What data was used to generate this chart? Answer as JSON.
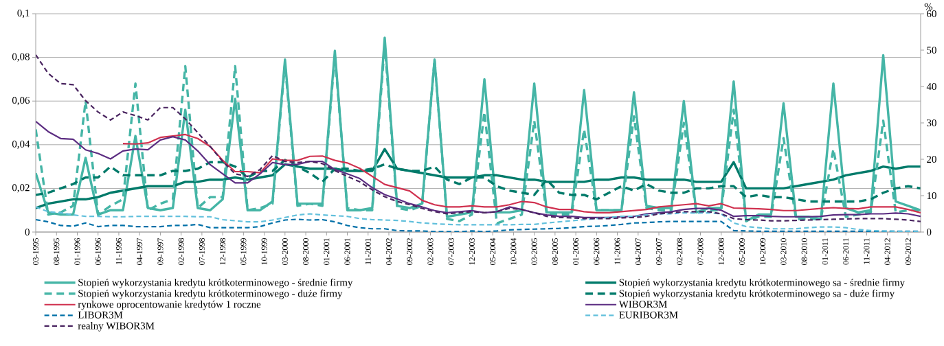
{
  "chart_data": {
    "type": "line",
    "x": [
      "1995-03",
      "1995-06",
      "1995-09",
      "1995-12",
      "1996-03",
      "1996-06",
      "1996-09",
      "1996-12",
      "1997-03",
      "1997-06",
      "1997-09",
      "1997-12",
      "1998-03",
      "1998-06",
      "1998-09",
      "1998-12",
      "1999-03",
      "1999-06",
      "1999-09",
      "1999-12",
      "2000-03",
      "2000-06",
      "2000-09",
      "2000-12",
      "2001-03",
      "2001-06",
      "2001-09",
      "2001-12",
      "2002-03",
      "2002-06",
      "2002-09",
      "2002-12",
      "2003-03",
      "2003-06",
      "2003-09",
      "2003-12",
      "2004-03",
      "2004-06",
      "2004-09",
      "2004-12",
      "2005-03",
      "2005-06",
      "2005-09",
      "2005-12",
      "2006-03",
      "2006-06",
      "2006-09",
      "2006-12",
      "2007-03",
      "2007-06",
      "2007-09",
      "2007-12",
      "2008-03",
      "2008-06",
      "2008-09",
      "2008-12",
      "2009-03",
      "2009-06",
      "2009-09",
      "2009-12",
      "2010-03",
      "2010-06",
      "2010-09",
      "2010-12",
      "2011-03",
      "2011-06",
      "2011-09",
      "2011-12",
      "2012-03",
      "2012-06",
      "2012-09",
      "2012-12"
    ],
    "xlim": [
      "1995-03",
      "2012-12"
    ],
    "xticks": [
      {
        "value": "1995-03",
        "label": "03-1995"
      },
      {
        "value": "1995-08",
        "label": "08-1995"
      },
      {
        "value": "1996-01",
        "label": "01-1996"
      },
      {
        "value": "1996-06",
        "label": "06-1996"
      },
      {
        "value": "1996-11",
        "label": "11-1996"
      },
      {
        "value": "1997-04",
        "label": "04-1997"
      },
      {
        "value": "1997-09",
        "label": "09-1997"
      },
      {
        "value": "1998-02",
        "label": "02-1998"
      },
      {
        "value": "1998-07",
        "label": "07-1998"
      },
      {
        "value": "1998-12",
        "label": "12-1998"
      },
      {
        "value": "1999-05",
        "label": "05-1999"
      },
      {
        "value": "1999-10",
        "label": "10-1999"
      },
      {
        "value": "2000-03",
        "label": "03-2000"
      },
      {
        "value": "2000-08",
        "label": "08-2000"
      },
      {
        "value": "2001-01",
        "label": "01-2001"
      },
      {
        "value": "2001-06",
        "label": "06-2001"
      },
      {
        "value": "2001-11",
        "label": "11-2001"
      },
      {
        "value": "2002-04",
        "label": "04-2002"
      },
      {
        "value": "2002-09",
        "label": "09-2002"
      },
      {
        "value": "2003-02",
        "label": "02-2003"
      },
      {
        "value": "2003-07",
        "label": "07-2003"
      },
      {
        "value": "2003-12",
        "label": "12-2003"
      },
      {
        "value": "2004-05",
        "label": "05-2004"
      },
      {
        "value": "2004-10",
        "label": "10-2004"
      },
      {
        "value": "2005-03",
        "label": "03-2005"
      },
      {
        "value": "2005-08",
        "label": "08-2005"
      },
      {
        "value": "2006-01",
        "label": "01-2006"
      },
      {
        "value": "2006-06",
        "label": "06-2006"
      },
      {
        "value": "2006-11",
        "label": "11-2006"
      },
      {
        "value": "2007-04",
        "label": "04-2007"
      },
      {
        "value": "2007-09",
        "label": "09-2007"
      },
      {
        "value": "2008-02",
        "label": "02-2008"
      },
      {
        "value": "2008-07",
        "label": "07-2008"
      },
      {
        "value": "2008-12",
        "label": "12-2008"
      },
      {
        "value": "2009-05",
        "label": "05-2009"
      },
      {
        "value": "2009-10",
        "label": "10-2009"
      },
      {
        "value": "2010-03",
        "label": "03-2010"
      },
      {
        "value": "2010-08",
        "label": "08-2010"
      },
      {
        "value": "2011-01",
        "label": "01-2011"
      },
      {
        "value": "2011-06",
        "label": "06-2011"
      },
      {
        "value": "2011-11",
        "label": "11-2011"
      },
      {
        "value": "2012-04",
        "label": "04-2012"
      },
      {
        "value": "2012-09",
        "label": "09-2012"
      }
    ],
    "ylim": [
      0,
      0.1
    ],
    "yticks": [
      0,
      {
        "value": 0.02,
        "label": "0,02"
      },
      {
        "value": 0.04,
        "label": "0,04"
      },
      {
        "value": 0.06,
        "label": "0,06"
      },
      {
        "value": 0.08,
        "label": "0,08"
      },
      {
        "value": 0.1,
        "label": "0,1"
      }
    ],
    "y2lim": [
      0,
      60
    ],
    "y2ticks": [
      0,
      10,
      20,
      30,
      40,
      50,
      60
    ],
    "y2label": "%",
    "grid": "y",
    "legend": "bottom",
    "series": [
      {
        "name": "Stopień wykorzystania kredytu krótkoterminowego - średnie firmy",
        "color": "#45b5a6",
        "line_style": "solid",
        "axis": "y",
        "values": [
          0.027,
          0.009,
          0.008,
          0.008,
          0.034,
          0.008,
          0.01,
          0.01,
          0.044,
          0.011,
          0.01,
          0.011,
          0.056,
          0.011,
          0.01,
          0.015,
          0.061,
          0.01,
          0.01,
          0.014,
          0.079,
          0.013,
          0.013,
          0.013,
          0.083,
          0.01,
          0.01,
          0.011,
          0.089,
          0.012,
          0.011,
          0.013,
          0.079,
          0.007,
          0.008,
          0.009,
          0.07,
          0.009,
          0.009,
          0.01,
          0.068,
          0.009,
          0.009,
          0.009,
          0.065,
          0.01,
          0.01,
          0.01,
          0.064,
          0.012,
          0.011,
          0.011,
          0.06,
          0.009,
          0.011,
          0.011,
          0.069,
          0.005,
          0.008,
          0.008,
          0.059,
          0.007,
          0.007,
          0.006,
          0.068,
          0.011,
          0.009,
          0.01,
          0.081,
          0.014,
          0.012,
          0.01
        ]
      },
      {
        "name": "Stopień wykorzystania kredytu krótkoterminowego sa - średnie firmy",
        "color": "#007a6a",
        "line_style": "solid",
        "axis": "y",
        "values": [
          0.011,
          0.013,
          0.014,
          0.015,
          0.015,
          0.016,
          0.018,
          0.019,
          0.02,
          0.021,
          0.021,
          0.021,
          0.023,
          0.023,
          0.024,
          0.024,
          0.025,
          0.024,
          0.025,
          0.026,
          0.031,
          0.03,
          0.029,
          0.029,
          0.029,
          0.028,
          0.028,
          0.028,
          0.038,
          0.029,
          0.028,
          0.027,
          0.026,
          0.025,
          0.025,
          0.025,
          0.026,
          0.026,
          0.025,
          0.024,
          0.024,
          0.023,
          0.023,
          0.023,
          0.023,
          0.024,
          0.024,
          0.025,
          0.025,
          0.024,
          0.024,
          0.024,
          0.024,
          0.023,
          0.023,
          0.023,
          0.032,
          0.02,
          0.02,
          0.02,
          0.02,
          0.021,
          0.022,
          0.023,
          0.024,
          0.026,
          0.027,
          0.028,
          0.03,
          0.029,
          0.03,
          0.03
        ]
      },
      {
        "name": "Stopień wykorzystania kredytu krótkoterminowego - duże firmy",
        "color": "#45b5a6",
        "line_style": "dashed",
        "axis": "y",
        "values": [
          0.047,
          0.008,
          0.009,
          0.012,
          0.06,
          0.008,
          0.012,
          0.015,
          0.068,
          0.01,
          0.013,
          0.015,
          0.076,
          0.011,
          0.016,
          0.016,
          0.076,
          0.01,
          0.011,
          0.013,
          0.077,
          0.012,
          0.013,
          0.012,
          0.081,
          0.011,
          0.01,
          0.01,
          0.086,
          0.011,
          0.01,
          0.012,
          0.079,
          0.006,
          0.005,
          0.008,
          0.055,
          0.004,
          0.006,
          0.008,
          0.051,
          0.008,
          0.008,
          0.008,
          0.047,
          0.01,
          0.01,
          0.01,
          0.053,
          0.011,
          0.01,
          0.01,
          0.05,
          0.009,
          0.01,
          0.01,
          0.056,
          0.005,
          0.007,
          0.007,
          0.043,
          0.006,
          0.006,
          0.006,
          0.038,
          0.007,
          0.008,
          0.009,
          0.051,
          0.009,
          0.01,
          0.01
        ]
      },
      {
        "name": "Stopień wykorzystania kredytu krótkoterminowego sa - duże firmy",
        "color": "#007a6a",
        "line_style": "dashed",
        "axis": "y",
        "values": [
          0.017,
          0.018,
          0.02,
          0.022,
          0.025,
          0.025,
          0.03,
          0.026,
          0.026,
          0.026,
          0.026,
          0.028,
          0.028,
          0.029,
          0.032,
          0.032,
          0.03,
          0.025,
          0.028,
          0.028,
          0.033,
          0.03,
          0.027,
          0.023,
          0.029,
          0.029,
          0.028,
          0.029,
          0.031,
          0.029,
          0.028,
          0.028,
          0.03,
          0.024,
          0.022,
          0.025,
          0.025,
          0.021,
          0.019,
          0.018,
          0.017,
          0.024,
          0.018,
          0.017,
          0.017,
          0.015,
          0.018,
          0.021,
          0.019,
          0.022,
          0.019,
          0.018,
          0.018,
          0.02,
          0.02,
          0.021,
          0.021,
          0.016,
          0.017,
          0.016,
          0.016,
          0.015,
          0.014,
          0.014,
          0.014,
          0.014,
          0.014,
          0.015,
          0.018,
          0.02,
          0.021,
          0.02
        ]
      },
      {
        "name": "rynkowe oprocentowanie kredytów 1 roczne",
        "color": "#d0314f",
        "line_style": "solid",
        "axis": "y2",
        "values": [
          null,
          null,
          null,
          null,
          null,
          null,
          null,
          24.3,
          24.2,
          24.5,
          26.0,
          26.4,
          26.8,
          25.7,
          23.5,
          19.7,
          16.6,
          16.6,
          16.3,
          20.1,
          19.7,
          19.7,
          20.8,
          20.9,
          19.7,
          19.0,
          17.5,
          15.3,
          13.1,
          12.2,
          11.3,
          8.7,
          7.5,
          6.9,
          6.9,
          7.2,
          6.9,
          6.9,
          7.5,
          8.4,
          8.1,
          6.9,
          6.2,
          6.2,
          5.6,
          5.3,
          5.3,
          5.6,
          5.9,
          6.2,
          6.9,
          7.2,
          7.5,
          7.8,
          7.2,
          7.8,
          6.6,
          6.5,
          6.4,
          6.2,
          5.9,
          5.9,
          6.2,
          6.5,
          6.7,
          6.5,
          6.4,
          6.9,
          6.9,
          6.9,
          6.2,
          5.3
        ]
      },
      {
        "name": "WIBOR3M",
        "color": "#5c2d82",
        "line_style": "solid",
        "axis": "y2",
        "values": [
          30.4,
          27.6,
          25.7,
          25.5,
          22.6,
          21.6,
          20.1,
          22.3,
          22.8,
          22.6,
          25.3,
          26.2,
          25.3,
          22.3,
          18.5,
          16.0,
          13.5,
          13.5,
          16.0,
          19.1,
          18.5,
          18.6,
          19.4,
          19.4,
          17.2,
          16.0,
          14.7,
          12.2,
          10.3,
          9.1,
          7.8,
          6.9,
          5.9,
          5.3,
          5.6,
          5.9,
          5.3,
          5.6,
          6.9,
          6.2,
          5.3,
          4.7,
          4.3,
          4.3,
          4.0,
          4.0,
          4.0,
          4.2,
          4.3,
          5.0,
          5.3,
          5.6,
          6.2,
          6.5,
          6.5,
          6.0,
          4.3,
          4.5,
          4.5,
          4.3,
          4.2,
          4.2,
          4.2,
          4.3,
          4.7,
          4.8,
          4.8,
          5.0,
          5.0,
          5.2,
          5.0,
          4.3
        ]
      },
      {
        "name": "LIBOR3M",
        "color": "#0070a8",
        "line_style": "dashed",
        "axis": "y2",
        "values": [
          3.4,
          2.8,
          1.8,
          1.6,
          2.5,
          1.5,
          1.8,
          1.8,
          1.5,
          1.5,
          1.5,
          1.8,
          1.8,
          2.1,
          1.2,
          1.2,
          1.2,
          1.2,
          1.5,
          2.5,
          3.3,
          3.5,
          3.3,
          3.4,
          2.8,
          1.8,
          1.2,
          0.9,
          0.9,
          0.4,
          0.3,
          0.3,
          0.1,
          0.1,
          0.1,
          0.3,
          0.1,
          0.3,
          0.6,
          0.7,
          0.8,
          0.9,
          1.0,
          1.2,
          1.5,
          1.6,
          1.8,
          2.1,
          2.5,
          2.6,
          2.8,
          2.9,
          2.9,
          2.9,
          2.9,
          2.9,
          0.4,
          0.3,
          0.2,
          0.2,
          0.2,
          0.2,
          0.2,
          0.2,
          0.2,
          0.2,
          0.2,
          0.2,
          0.2,
          0.2,
          0.2,
          0.2
        ]
      },
      {
        "name": "EURIBOR3M",
        "color": "#62c0dc",
        "line_style": "dashed",
        "axis": "y2",
        "values": [
          6.9,
          5.6,
          5.3,
          4.7,
          4.3,
          4.3,
          4.2,
          4.2,
          4.3,
          4.3,
          4.3,
          4.3,
          4.3,
          4.2,
          4.2,
          3.4,
          3.1,
          2.8,
          2.8,
          3.3,
          4.0,
          4.7,
          5.0,
          4.7,
          4.5,
          4.3,
          3.7,
          3.4,
          3.3,
          3.2,
          2.9,
          2.5,
          2.3,
          2.1,
          2.0,
          2.0,
          2.0,
          2.0,
          2.0,
          2.1,
          2.1,
          2.5,
          2.8,
          3.1,
          3.4,
          3.7,
          4.0,
          4.3,
          4.3,
          4.7,
          5.0,
          5.0,
          5.3,
          5.2,
          5.3,
          5.0,
          2.5,
          1.5,
          1.2,
          0.9,
          0.9,
          0.9,
          1.2,
          1.4,
          1.4,
          1.2,
          0.7,
          0.4,
          0.3,
          0.2,
          0.1,
          0.1
        ]
      },
      {
        "name": "realny WIBOR3M",
        "color": "#4a2560",
        "line_style": "dashed",
        "axis": "y2",
        "values": [
          48.7,
          43.6,
          40.8,
          40.5,
          36.1,
          33.0,
          30.8,
          33.0,
          32.0,
          30.8,
          34.2,
          34.2,
          31.1,
          27.3,
          23.5,
          19.4,
          16.0,
          15.3,
          17.2,
          21.0,
          19.4,
          19.1,
          19.4,
          18.8,
          16.9,
          15.3,
          13.8,
          11.6,
          9.7,
          8.4,
          7.5,
          6.5,
          5.6,
          5.0,
          5.3,
          5.6,
          5.3,
          5.6,
          6.5,
          6.2,
          5.3,
          4.3,
          4.0,
          3.9,
          3.7,
          3.7,
          3.7,
          3.9,
          4.0,
          4.3,
          5.0,
          5.3,
          5.6,
          5.6,
          5.6,
          5.0,
          3.7,
          3.4,
          3.3,
          3.1,
          3.1,
          3.2,
          3.3,
          3.4,
          3.5,
          3.6,
          3.7,
          3.7,
          3.7,
          3.5,
          3.3,
          2.9
        ]
      }
    ]
  }
}
